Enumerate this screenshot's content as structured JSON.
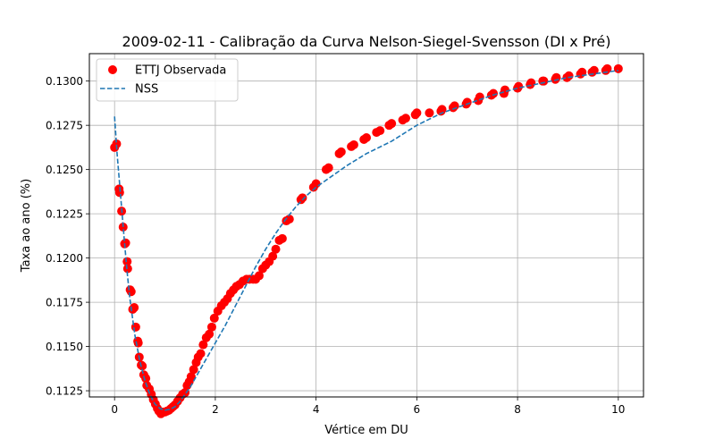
{
  "chart_data": {
    "type": "scatter",
    "title": "2009-02-11 - Calibração da Curva Nelson-Siegel-Svensson (DI x Pré)",
    "xlabel": "Vértice em DU",
    "ylabel": "Taxa ao ano (%)",
    "xlim": [
      -0.5,
      10.5
    ],
    "ylim": [
      0.11215,
      0.13155
    ],
    "xticks": [
      0,
      2,
      4,
      6,
      8,
      10
    ],
    "xtick_labels": [
      "0",
      "2",
      "4",
      "6",
      "8",
      "10"
    ],
    "yticks": [
      0.1125,
      0.115,
      0.1175,
      0.12,
      0.1225,
      0.125,
      0.1275,
      0.13
    ],
    "ytick_labels": [
      "0.1125",
      "0.1150",
      "0.1175",
      "0.1200",
      "0.1225",
      "0.1250",
      "0.1275",
      "0.1300"
    ],
    "grid": true,
    "legend_position": "top-left",
    "colors": {
      "observed": "#ff0000",
      "fit": "#1f77b4",
      "grid": "#b0b0b0"
    },
    "series": [
      {
        "name": "ETTJ Observada",
        "kind": "scatter",
        "x": [
          0.0,
          0.04,
          0.09,
          0.1,
          0.14,
          0.17,
          0.2,
          0.22,
          0.25,
          0.26,
          0.31,
          0.33,
          0.36,
          0.39,
          0.42,
          0.46,
          0.47,
          0.49,
          0.53,
          0.55,
          0.58,
          0.62,
          0.64,
          0.69,
          0.73,
          0.77,
          0.81,
          0.85,
          0.88,
          0.92,
          0.96,
          1.0,
          1.04,
          1.08,
          1.12,
          1.16,
          1.2,
          1.25,
          1.3,
          1.35,
          1.4,
          1.44,
          1.48,
          1.52,
          1.57,
          1.62,
          1.66,
          1.71,
          1.76,
          1.82,
          1.88,
          1.93,
          1.98,
          2.05,
          2.12,
          2.18,
          2.24,
          2.3,
          2.36,
          2.42,
          2.48,
          2.55,
          2.62,
          2.68,
          2.75,
          2.8,
          2.87,
          2.94,
          3.0,
          3.07,
          3.14,
          3.2,
          3.27,
          3.33,
          3.41,
          3.47,
          3.7,
          3.73,
          3.95,
          4.0,
          4.2,
          4.25,
          4.46,
          4.5,
          4.7,
          4.75,
          4.95,
          5.0,
          5.2,
          5.27,
          5.45,
          5.5,
          5.72,
          5.78,
          5.97,
          6.0,
          6.25,
          6.48,
          6.5,
          6.72,
          6.75,
          6.98,
          7.0,
          7.22,
          7.25,
          7.48,
          7.52,
          7.73,
          7.75,
          8.0,
          8.02,
          8.25,
          8.27,
          8.5,
          8.52,
          8.75,
          8.77,
          8.98,
          9.02,
          9.25,
          9.28,
          9.48,
          9.52,
          9.75,
          9.78,
          10.0
        ],
        "y": [
          0.12625,
          0.12645,
          0.1239,
          0.1237,
          0.12265,
          0.12175,
          0.1208,
          0.12085,
          0.1198,
          0.1194,
          0.1182,
          0.1181,
          0.1171,
          0.1172,
          0.1161,
          0.1153,
          0.1152,
          0.1144,
          0.11395,
          0.1139,
          0.1134,
          0.1132,
          0.1128,
          0.1126,
          0.1123,
          0.112,
          0.11175,
          0.1115,
          0.11135,
          0.1112,
          0.1113,
          0.1113,
          0.11135,
          0.1114,
          0.1115,
          0.1116,
          0.1117,
          0.1119,
          0.1121,
          0.1123,
          0.1124,
          0.1128,
          0.113,
          0.1133,
          0.1137,
          0.1141,
          0.1144,
          0.1146,
          0.1151,
          0.1155,
          0.1157,
          0.1161,
          0.1166,
          0.117,
          0.1173,
          0.1175,
          0.1177,
          0.118,
          0.1182,
          0.1184,
          0.1185,
          0.1187,
          0.1188,
          0.1188,
          0.1188,
          0.1188,
          0.119,
          0.1194,
          0.1196,
          0.1198,
          0.1201,
          0.1205,
          0.121,
          0.1211,
          0.1221,
          0.1222,
          0.1233,
          0.1234,
          0.124,
          0.1242,
          0.125,
          0.1251,
          0.1259,
          0.126,
          0.1263,
          0.1264,
          0.1267,
          0.1268,
          0.1271,
          0.1272,
          0.1275,
          0.1276,
          0.1278,
          0.1279,
          0.1281,
          0.1282,
          0.1282,
          0.1283,
          0.1284,
          0.1285,
          0.1286,
          0.1287,
          0.1288,
          0.1289,
          0.1291,
          0.1292,
          0.1293,
          0.1293,
          0.1295,
          0.1296,
          0.1297,
          0.1298,
          0.1299,
          0.13,
          0.13,
          0.1301,
          0.1302,
          0.1302,
          0.1303,
          0.1304,
          0.1305,
          0.1305,
          0.1306,
          0.1306,
          0.1307,
          0.1307
        ]
      },
      {
        "name": "NSS",
        "kind": "line",
        "style": "dashed",
        "x": [
          0.0,
          0.05,
          0.1,
          0.15,
          0.2,
          0.25,
          0.3,
          0.4,
          0.5,
          0.6,
          0.7,
          0.8,
          0.9,
          1.0,
          1.1,
          1.2,
          1.3,
          1.4,
          1.5,
          1.6,
          1.7,
          1.8,
          1.9,
          2.0,
          2.2,
          2.4,
          2.6,
          2.8,
          3.0,
          3.2,
          3.4,
          3.6,
          3.8,
          4.0,
          4.3,
          4.6,
          5.0,
          5.5,
          6.0,
          6.5,
          7.0,
          7.5,
          8.0,
          8.5,
          9.0,
          9.5,
          10.0
        ],
        "y": [
          0.128,
          0.1259,
          0.1242,
          0.1225,
          0.1208,
          0.1192,
          0.1178,
          0.1157,
          0.1142,
          0.1131,
          0.1123,
          0.11175,
          0.1115,
          0.1114,
          0.11145,
          0.1116,
          0.1119,
          0.1123,
          0.1127,
          0.1132,
          0.1137,
          0.1142,
          0.1147,
          0.1152,
          0.1162,
          0.1173,
          0.1184,
          0.1195,
          0.1205,
          0.1214,
          0.1222,
          0.1229,
          0.1235,
          0.124,
          0.1246,
          0.1252,
          0.1259,
          0.1266,
          0.1275,
          0.1282,
          0.1287,
          0.1292,
          0.1296,
          0.1299,
          0.1302,
          0.1304,
          0.1306
        ]
      }
    ]
  }
}
